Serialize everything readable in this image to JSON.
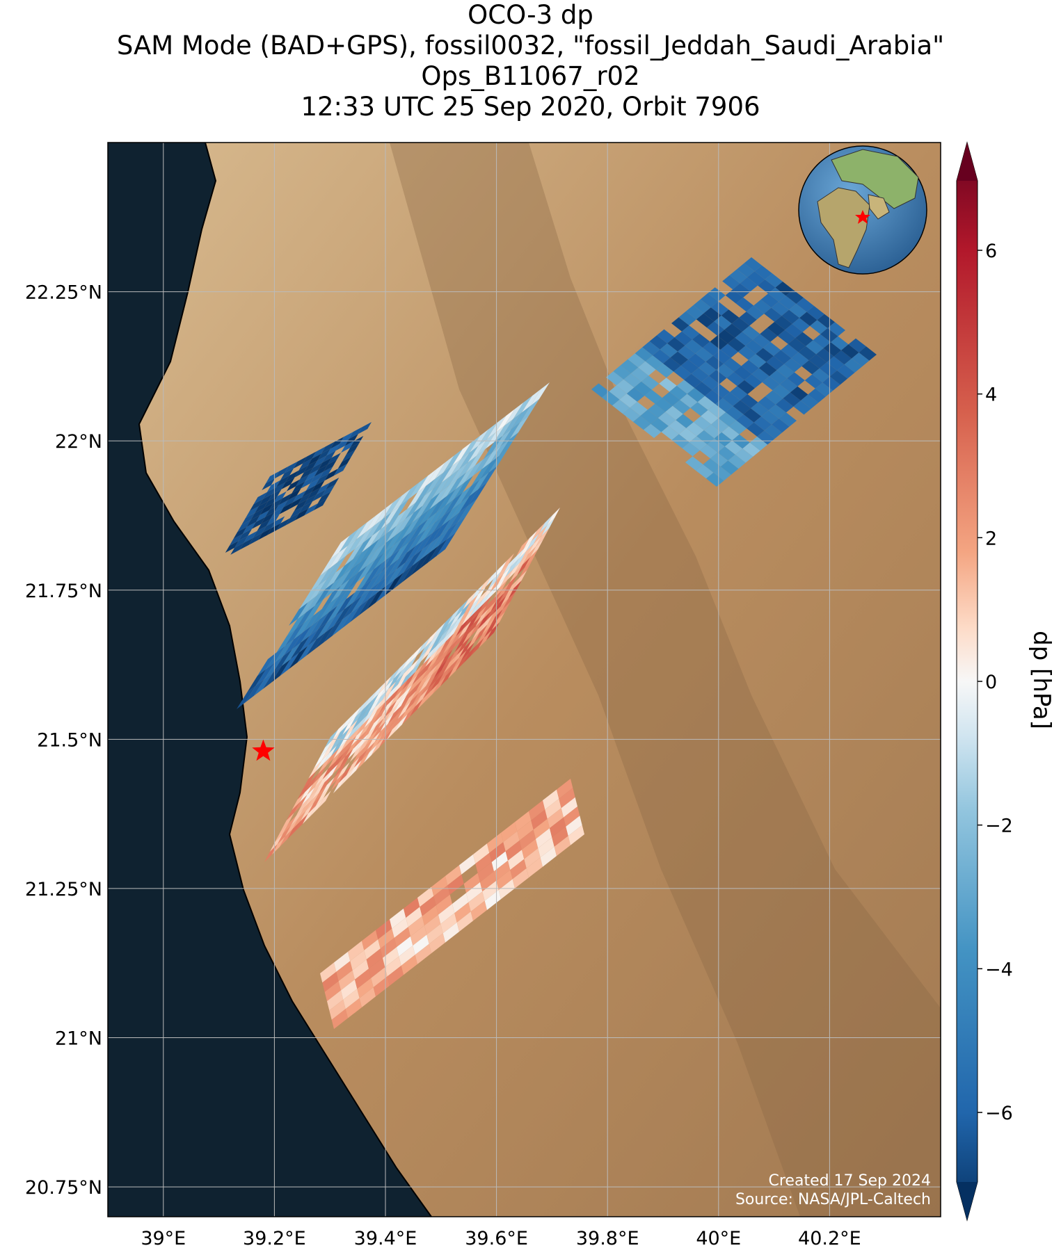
{
  "title": {
    "line1": "OCO-3 dp",
    "line2": "SAM Mode (BAD+GPS), fossil0032, \"fossil_Jeddah_Saudi_Arabia\"",
    "line3": "Ops_B11067_r02",
    "line4": "12:33 UTC 25 Sep 2020, Orbit 7906"
  },
  "map": {
    "lon_range": [
      38.9,
      40.4
    ],
    "lat_range": [
      20.7,
      22.5
    ],
    "lon_ticks": [
      {
        "value": 39.0,
        "label": "39°E"
      },
      {
        "value": 39.2,
        "label": "39.2°E"
      },
      {
        "value": 39.4,
        "label": "39.4°E"
      },
      {
        "value": 39.6,
        "label": "39.6°E"
      },
      {
        "value": 39.8,
        "label": "39.8°E"
      },
      {
        "value": 40.0,
        "label": "40°E"
      },
      {
        "value": 40.2,
        "label": "40.2°E"
      }
    ],
    "lat_ticks": [
      {
        "value": 22.25,
        "label": "22.25°N"
      },
      {
        "value": 22.0,
        "label": "22°N"
      },
      {
        "value": 21.75,
        "label": "21.75°N"
      },
      {
        "value": 21.5,
        "label": "21.5°N"
      },
      {
        "value": 21.25,
        "label": "21.25°N"
      },
      {
        "value": 21.0,
        "label": "21°N"
      },
      {
        "value": 20.75,
        "label": "20.75°N"
      }
    ],
    "grid": true,
    "target": {
      "name": "fossil_Jeddah_Saudi_Arabia",
      "lon": 39.18,
      "lat": 21.48,
      "marker": "red-star"
    },
    "inset": "globe-icon",
    "colors": {
      "sea": "#0f2230",
      "land": "#c9a57a",
      "target": "#ff0000"
    }
  },
  "colorbar": {
    "label": "dp [hPa]",
    "range": [
      -7.5,
      7.5
    ],
    "ticks": [
      {
        "value": 6,
        "label": "6"
      },
      {
        "value": 4,
        "label": "4"
      },
      {
        "value": 2,
        "label": "2"
      },
      {
        "value": 0,
        "label": "0"
      },
      {
        "value": -2,
        "label": "−2"
      },
      {
        "value": -4,
        "label": "−4"
      },
      {
        "value": -6,
        "label": "−6"
      }
    ],
    "colormap": "RdBu_r",
    "extend": "both"
  },
  "footer": {
    "created": "Created 17 Sep 2024",
    "source": "Source: NASA/JPL-Caltech"
  }
}
